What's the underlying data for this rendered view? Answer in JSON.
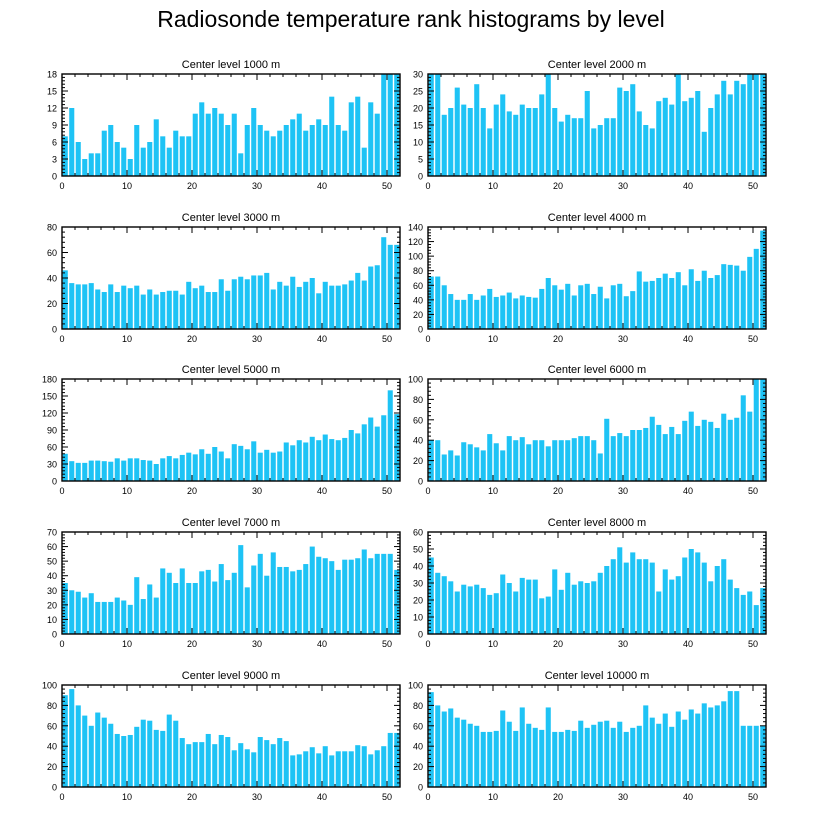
{
  "title": "Radiosonde temperature rank histograms by level",
  "colors": {
    "bar": "#1ec3f5",
    "axis": "#000000",
    "background": "#ffffff"
  },
  "chart_data": [
    {
      "type": "bar",
      "title": "Center level 1000 m",
      "xlim": [
        0,
        52
      ],
      "xticks": [
        0,
        10,
        20,
        30,
        40,
        50
      ],
      "ylim": [
        0,
        18
      ],
      "yticks": [
        0,
        3,
        6,
        9,
        12,
        15,
        18
      ],
      "x": [
        0,
        1,
        2,
        3,
        4,
        5,
        6,
        7,
        8,
        9,
        10,
        11,
        12,
        13,
        14,
        15,
        16,
        17,
        18,
        19,
        20,
        21,
        22,
        23,
        24,
        25,
        26,
        27,
        28,
        29,
        30,
        31,
        32,
        33,
        34,
        35,
        36,
        37,
        38,
        39,
        40,
        41,
        42,
        43,
        44,
        45,
        46,
        47,
        48,
        49,
        50,
        51
      ],
      "values": [
        7,
        12,
        6,
        3,
        4,
        4,
        8,
        9,
        6,
        5,
        3,
        9,
        5,
        6,
        10,
        7,
        5,
        8,
        7,
        7,
        11,
        13,
        11,
        12,
        11,
        9,
        11,
        4,
        9,
        12,
        9,
        8,
        7,
        8,
        9,
        10,
        11,
        8,
        9,
        10,
        9,
        14,
        9,
        8,
        13,
        14,
        5,
        13,
        11,
        18,
        18,
        18
      ]
    },
    {
      "type": "bar",
      "title": "Center level 2000 m",
      "xlim": [
        0,
        52
      ],
      "xticks": [
        0,
        10,
        20,
        30,
        40,
        50
      ],
      "ylim": [
        0,
        30
      ],
      "yticks": [
        0,
        5,
        10,
        15,
        20,
        25,
        30
      ],
      "x": [
        0,
        1,
        2,
        3,
        4,
        5,
        6,
        7,
        8,
        9,
        10,
        11,
        12,
        13,
        14,
        15,
        16,
        17,
        18,
        19,
        20,
        21,
        22,
        23,
        24,
        25,
        26,
        27,
        28,
        29,
        30,
        31,
        32,
        33,
        34,
        35,
        36,
        37,
        38,
        39,
        40,
        41,
        42,
        43,
        44,
        45,
        46,
        47,
        48,
        49,
        50,
        51
      ],
      "values": [
        30,
        30,
        18,
        20,
        26,
        21,
        20,
        27,
        20,
        14,
        21,
        24,
        19,
        18,
        21,
        20,
        20,
        24,
        30,
        20,
        16,
        18,
        17,
        17,
        25,
        14,
        15,
        17,
        17,
        26,
        25,
        27,
        19,
        15,
        14,
        22,
        23,
        21,
        30,
        22,
        23,
        25,
        13,
        20,
        24,
        28,
        24,
        28,
        27,
        30,
        30,
        30
      ]
    },
    {
      "type": "bar",
      "title": "Center level 3000 m",
      "xlim": [
        0,
        52
      ],
      "xticks": [
        0,
        10,
        20,
        30,
        40,
        50
      ],
      "ylim": [
        0,
        80
      ],
      "yticks": [
        0,
        20,
        40,
        60,
        80
      ],
      "x": [
        0,
        1,
        2,
        3,
        4,
        5,
        6,
        7,
        8,
        9,
        10,
        11,
        12,
        13,
        14,
        15,
        16,
        17,
        18,
        19,
        20,
        21,
        22,
        23,
        24,
        25,
        26,
        27,
        28,
        29,
        30,
        31,
        32,
        33,
        34,
        35,
        36,
        37,
        38,
        39,
        40,
        41,
        42,
        43,
        44,
        45,
        46,
        47,
        48,
        49,
        50,
        51
      ],
      "values": [
        46,
        36,
        35,
        35,
        36,
        31,
        29,
        35,
        29,
        34,
        32,
        34,
        27,
        31,
        27,
        29,
        30,
        30,
        27,
        37,
        32,
        34,
        29,
        29,
        39,
        30,
        39,
        41,
        39,
        42,
        42,
        44,
        31,
        37,
        34,
        41,
        33,
        37,
        40,
        28,
        37,
        34,
        34,
        35,
        38,
        44,
        38,
        49,
        50,
        72,
        66,
        66
      ]
    },
    {
      "type": "bar",
      "title": "Center level 4000 m",
      "xlim": [
        0,
        52
      ],
      "xticks": [
        0,
        10,
        20,
        30,
        40,
        50
      ],
      "ylim": [
        0,
        140
      ],
      "yticks": [
        0,
        20,
        40,
        60,
        80,
        100,
        120,
        140
      ],
      "x": [
        0,
        1,
        2,
        3,
        4,
        5,
        6,
        7,
        8,
        9,
        10,
        11,
        12,
        13,
        14,
        15,
        16,
        17,
        18,
        19,
        20,
        21,
        22,
        23,
        24,
        25,
        26,
        27,
        28,
        29,
        30,
        31,
        32,
        33,
        34,
        35,
        36,
        37,
        38,
        39,
        40,
        41,
        42,
        43,
        44,
        45,
        46,
        47,
        48,
        49,
        50,
        51
      ],
      "values": [
        72,
        72,
        60,
        48,
        40,
        40,
        48,
        40,
        46,
        55,
        44,
        46,
        50,
        42,
        46,
        44,
        43,
        55,
        70,
        60,
        54,
        62,
        46,
        60,
        62,
        48,
        58,
        42,
        60,
        62,
        45,
        52,
        79,
        65,
        66,
        70,
        76,
        70,
        78,
        60,
        82,
        66,
        80,
        70,
        74,
        89,
        88,
        87,
        80,
        99,
        110,
        135
      ]
    },
    {
      "type": "bar",
      "title": "Center level 5000 m",
      "xlim": [
        0,
        52
      ],
      "xticks": [
        0,
        10,
        20,
        30,
        40,
        50
      ],
      "ylim": [
        0,
        180
      ],
      "yticks": [
        0,
        30,
        60,
        90,
        120,
        150,
        180
      ],
      "x": [
        0,
        1,
        2,
        3,
        4,
        5,
        6,
        7,
        8,
        9,
        10,
        11,
        12,
        13,
        14,
        15,
        16,
        17,
        18,
        19,
        20,
        21,
        22,
        23,
        24,
        25,
        26,
        27,
        28,
        29,
        30,
        31,
        32,
        33,
        34,
        35,
        36,
        37,
        38,
        39,
        40,
        41,
        42,
        43,
        44,
        45,
        46,
        47,
        48,
        49,
        50,
        51
      ],
      "values": [
        48,
        35,
        32,
        32,
        36,
        36,
        35,
        34,
        40,
        36,
        40,
        40,
        37,
        36,
        30,
        40,
        44,
        40,
        46,
        50,
        47,
        56,
        48,
        60,
        52,
        40,
        65,
        62,
        56,
        70,
        50,
        55,
        50,
        52,
        68,
        63,
        72,
        68,
        78,
        72,
        82,
        74,
        72,
        76,
        90,
        84,
        100,
        112,
        96,
        116,
        160,
        118
      ]
    },
    {
      "type": "bar",
      "title": "Center level 6000 m",
      "xlim": [
        0,
        52
      ],
      "xticks": [
        0,
        10,
        20,
        30,
        40,
        50
      ],
      "ylim": [
        0,
        100
      ],
      "yticks": [
        0,
        20,
        40,
        60,
        80,
        100
      ],
      "x": [
        0,
        1,
        2,
        3,
        4,
        5,
        6,
        7,
        8,
        9,
        10,
        11,
        12,
        13,
        14,
        15,
        16,
        17,
        18,
        19,
        20,
        21,
        22,
        23,
        24,
        25,
        26,
        27,
        28,
        29,
        30,
        31,
        32,
        33,
        34,
        35,
        36,
        37,
        38,
        39,
        40,
        41,
        42,
        43,
        44,
        45,
        46,
        47,
        48,
        49,
        50,
        51
      ],
      "values": [
        40,
        40,
        26,
        30,
        25,
        38,
        36,
        33,
        30,
        46,
        37,
        30,
        44,
        40,
        43,
        36,
        40,
        40,
        34,
        40,
        40,
        40,
        42,
        44,
        44,
        40,
        27,
        61,
        44,
        47,
        44,
        50,
        50,
        52,
        63,
        55,
        46,
        53,
        46,
        59,
        68,
        54,
        60,
        58,
        52,
        66,
        60,
        62,
        84,
        68,
        100,
        100
      ]
    },
    {
      "type": "bar",
      "title": "Center level 7000 m",
      "xlim": [
        0,
        52
      ],
      "xticks": [
        0,
        10,
        20,
        30,
        40,
        50
      ],
      "ylim": [
        0,
        70
      ],
      "yticks": [
        0,
        10,
        20,
        30,
        40,
        50,
        60,
        70
      ],
      "x": [
        0,
        1,
        2,
        3,
        4,
        5,
        6,
        7,
        8,
        9,
        10,
        11,
        12,
        13,
        14,
        15,
        16,
        17,
        18,
        19,
        20,
        21,
        22,
        23,
        24,
        25,
        26,
        27,
        28,
        29,
        30,
        31,
        32,
        33,
        34,
        35,
        36,
        37,
        38,
        39,
        40,
        41,
        42,
        43,
        44,
        45,
        46,
        47,
        48,
        49,
        50,
        51
      ],
      "values": [
        35,
        30,
        29,
        25,
        28,
        22,
        22,
        22,
        25,
        23,
        20,
        39,
        24,
        34,
        25,
        45,
        42,
        35,
        45,
        35,
        35,
        43,
        44,
        36,
        48,
        37,
        42,
        61,
        32,
        47,
        55,
        40,
        56,
        46,
        46,
        43,
        44,
        48,
        60,
        53,
        52,
        50,
        44,
        51,
        51,
        52,
        58,
        52,
        55,
        55,
        55,
        44
      ]
    },
    {
      "type": "bar",
      "title": "Center level 8000 m",
      "xlim": [
        0,
        52
      ],
      "xticks": [
        0,
        10,
        20,
        30,
        40,
        50
      ],
      "ylim": [
        0,
        60
      ],
      "yticks": [
        0,
        10,
        20,
        30,
        40,
        50,
        60
      ],
      "x": [
        0,
        1,
        2,
        3,
        4,
        5,
        6,
        7,
        8,
        9,
        10,
        11,
        12,
        13,
        14,
        15,
        16,
        17,
        18,
        19,
        20,
        21,
        22,
        23,
        24,
        25,
        26,
        27,
        28,
        29,
        30,
        31,
        32,
        33,
        34,
        35,
        36,
        37,
        38,
        39,
        40,
        41,
        42,
        43,
        44,
        45,
        46,
        47,
        48,
        49,
        50,
        51
      ],
      "values": [
        45,
        36,
        34,
        31,
        25,
        29,
        28,
        29,
        27,
        23,
        24,
        35,
        30,
        25,
        33,
        32,
        32,
        21,
        22,
        38,
        26,
        36,
        29,
        31,
        30,
        31,
        36,
        40,
        44,
        51,
        42,
        48,
        44,
        44,
        42,
        25,
        38,
        32,
        34,
        45,
        50,
        48,
        42,
        31,
        40,
        44,
        32,
        27,
        23,
        25,
        17,
        27
      ]
    },
    {
      "type": "bar",
      "title": "Center level 9000 m",
      "xlim": [
        0,
        52
      ],
      "xticks": [
        0,
        10,
        20,
        30,
        40,
        50
      ],
      "ylim": [
        0,
        100
      ],
      "yticks": [
        0,
        20,
        40,
        60,
        80,
        100
      ],
      "x": [
        0,
        1,
        2,
        3,
        4,
        5,
        6,
        7,
        8,
        9,
        10,
        11,
        12,
        13,
        14,
        15,
        16,
        17,
        18,
        19,
        20,
        21,
        22,
        23,
        24,
        25,
        26,
        27,
        28,
        29,
        30,
        31,
        32,
        33,
        34,
        35,
        36,
        37,
        38,
        39,
        40,
        41,
        42,
        43,
        44,
        45,
        46,
        47,
        48,
        49,
        50,
        51
      ],
      "values": [
        90,
        96,
        80,
        70,
        60,
        73,
        68,
        62,
        52,
        50,
        51,
        59,
        66,
        65,
        56,
        55,
        71,
        65,
        48,
        42,
        44,
        44,
        52,
        42,
        51,
        49,
        36,
        43,
        37,
        34,
        49,
        46,
        42,
        48,
        45,
        31,
        32,
        35,
        39,
        33,
        40,
        31,
        35,
        35,
        35,
        41,
        40,
        32,
        36,
        40,
        53,
        53
      ]
    },
    {
      "type": "bar",
      "title": "Center level 10000 m",
      "xlim": [
        0,
        52
      ],
      "xticks": [
        0,
        10,
        20,
        30,
        40,
        50
      ],
      "ylim": [
        0,
        100
      ],
      "yticks": [
        0,
        20,
        40,
        60,
        80,
        100
      ],
      "x": [
        0,
        1,
        2,
        3,
        4,
        5,
        6,
        7,
        8,
        9,
        10,
        11,
        12,
        13,
        14,
        15,
        16,
        17,
        18,
        19,
        20,
        21,
        22,
        23,
        24,
        25,
        26,
        27,
        28,
        29,
        30,
        31,
        32,
        33,
        34,
        35,
        36,
        37,
        38,
        39,
        40,
        41,
        42,
        43,
        44,
        45,
        46,
        47,
        48,
        49,
        50,
        51
      ],
      "values": [
        93,
        80,
        74,
        77,
        68,
        66,
        62,
        60,
        54,
        54,
        55,
        75,
        64,
        55,
        78,
        62,
        58,
        56,
        78,
        54,
        54,
        56,
        55,
        65,
        58,
        61,
        64,
        65,
        58,
        64,
        54,
        58,
        60,
        80,
        68,
        62,
        72,
        59,
        74,
        66,
        76,
        72,
        82,
        78,
        80,
        84,
        94,
        94,
        60,
        60,
        60,
        60
      ]
    }
  ]
}
